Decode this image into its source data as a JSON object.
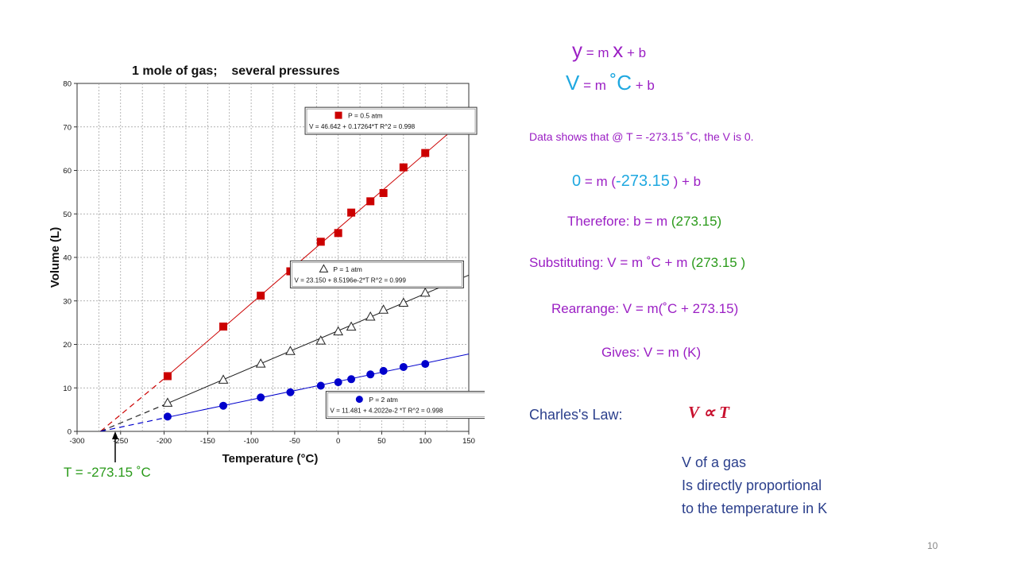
{
  "chart_data": {
    "type": "scatter",
    "title": "1 mole of gas;    several pressures",
    "xlabel": "Temperature (°C)",
    "ylabel": "Volume (L)",
    "xlim": [
      -300,
      150
    ],
    "ylim": [
      0,
      80
    ],
    "xticks": [
      "-300",
      "-250",
      "-200",
      "-150",
      "-100",
      "-50",
      "0",
      "50",
      "100",
      "150"
    ],
    "yticks": [
      "0",
      "10",
      "20",
      "30",
      "40",
      "50",
      "60",
      "70",
      "80"
    ],
    "grid": true,
    "series": [
      {
        "name": "P = 0.5 atm",
        "marker": "filled-square",
        "color": "#cc0000",
        "fit_label": "V = 46.642 + 0.17264*T   R^2 = 0.998",
        "fit": {
          "intercept": 46.642,
          "slope": 0.17264
        },
        "x": [
          -196,
          -132,
          -89,
          -55,
          -20,
          0,
          15,
          37,
          52,
          75,
          100
        ],
        "y": [
          12.7,
          24.1,
          31.2,
          36.8,
          43.6,
          45.6,
          50.3,
          52.9,
          54.8,
          60.7,
          64.0
        ]
      },
      {
        "name": "P = 1 atm",
        "marker": "open-triangle",
        "color": "#222222",
        "fit_label": "V = 23.150 + 8.5196e-2*T   R^2 = 0.999",
        "fit": {
          "intercept": 23.15,
          "slope": 0.085196
        },
        "x": [
          -196,
          -132,
          -89,
          -55,
          -20,
          0,
          15,
          37,
          52,
          75,
          100
        ],
        "y": [
          6.5,
          11.8,
          15.5,
          18.4,
          20.8,
          22.9,
          24.0,
          26.3,
          27.9,
          29.5,
          31.8
        ]
      },
      {
        "name": "P = 2 atm",
        "marker": "filled-circle",
        "color": "#0000cc",
        "fit_label": "V = 11.481 + 4.2022e-2 *T   R^2 = 0.998",
        "fit": {
          "intercept": 11.481,
          "slope": 0.042022
        },
        "x": [
          -196,
          -132,
          -89,
          -55,
          -20,
          0,
          15,
          37,
          52,
          75,
          100
        ],
        "y": [
          3.4,
          5.9,
          7.8,
          9.0,
          10.5,
          11.3,
          12.0,
          13.1,
          13.9,
          14.8,
          15.5
        ]
      }
    ]
  },
  "annotation": {
    "zero_temp_label": "T = -273.15 ˚C",
    "zero_temp_value": -273.15
  },
  "equations": {
    "line1": {
      "y": "y",
      "eq": " = m ",
      "x": "x",
      "rest": " + b"
    },
    "line2": {
      "V": "V",
      "eq": " = m ",
      "C": "˚C",
      "rest": " + b"
    },
    "data_note": "Data shows that @ T = -273.15 ˚C, the V is 0.",
    "zero_line": {
      "zero": "0",
      "mid": " = m (",
      "val": "-273.15",
      "end": " ) + b"
    },
    "therefore": {
      "label": "Therefore: b = m ",
      "val": "(273.15)"
    },
    "substituting": {
      "label": "Substituting: V = m ˚C + m ",
      "val": "(273.15 )"
    },
    "rearrange": "Rearrange: V = m(˚C + 273.15)",
    "gives": "Gives: V = m (K)"
  },
  "law": {
    "label": "Charles's Law:",
    "formula": "V ∝ T",
    "desc1": "V of a gas",
    "desc2": "Is directly proportional",
    "desc3": "to the temperature in K"
  },
  "page_number": "10"
}
